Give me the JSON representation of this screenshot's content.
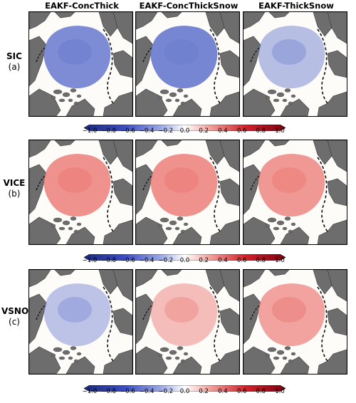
{
  "columns": [
    "EAKF-ConcThick",
    "EAKF-ConcThickSnow",
    "EAKF-ThickSnow"
  ],
  "rows": [
    {
      "variable": "SIC",
      "panel": "(a)",
      "tone": "blue"
    },
    {
      "variable": "VICE",
      "panel": "(b)",
      "tone": "red"
    },
    {
      "variable": "VSNO",
      "panel": "(c)",
      "tone": "mixed"
    }
  ],
  "colorbar": {
    "ticks": [
      "−1.0",
      "−0.8",
      "−0.6",
      "−0.4",
      "−0.2",
      "0.0",
      "0.2",
      "0.4",
      "0.6",
      "0.8",
      "1.0"
    ],
    "colors": {
      "min": "#1b2a7a",
      "mid": "#ffffff",
      "max": "#7a0010"
    }
  },
  "colors": {
    "land": "#6d6d6d",
    "ocean": "#fdfbf8",
    "blue": "#6f7fd0",
    "red": "#ec7e7a"
  }
}
